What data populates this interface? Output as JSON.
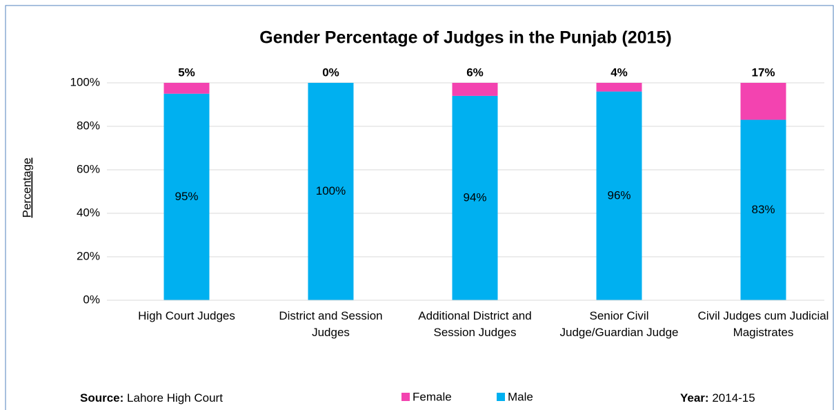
{
  "chart_data": {
    "type": "stacked_bar",
    "title": "Gender Percentage of Judges in the Punjab (2015)",
    "y_label": "Percentage",
    "categories": [
      "High Court Judges",
      "District and Session Judges",
      "Additional District and Session Judges",
      "Senior Civil Judge/Guardian Judge",
      "Civil Judges cum Judicial Magistrates"
    ],
    "series": [
      {
        "name": "Male",
        "color": "#00b0f0",
        "values": [
          95,
          100,
          94,
          96,
          83
        ],
        "value_labels": [
          "95%",
          "100%",
          "94%",
          "96%",
          "83%"
        ]
      },
      {
        "name": "Female",
        "color": "#f343b0",
        "values": [
          5,
          0,
          6,
          4,
          17
        ],
        "value_labels": [
          "5%",
          "0%",
          "6%",
          "4%",
          "17%"
        ]
      }
    ],
    "ylim": [
      0,
      100
    ],
    "yticks": [
      {
        "value": 0,
        "label": "0%"
      },
      {
        "value": 20,
        "label": "20%"
      },
      {
        "value": 40,
        "label": "40%"
      },
      {
        "value": 60,
        "label": "60%"
      },
      {
        "value": 80,
        "label": "80%"
      },
      {
        "value": 100,
        "label": "100%"
      }
    ],
    "grid": true,
    "legend": "bottom",
    "source_label": "Source:",
    "source": "Lahore High Court",
    "year_label": "Year:",
    "year": "2014-15"
  }
}
